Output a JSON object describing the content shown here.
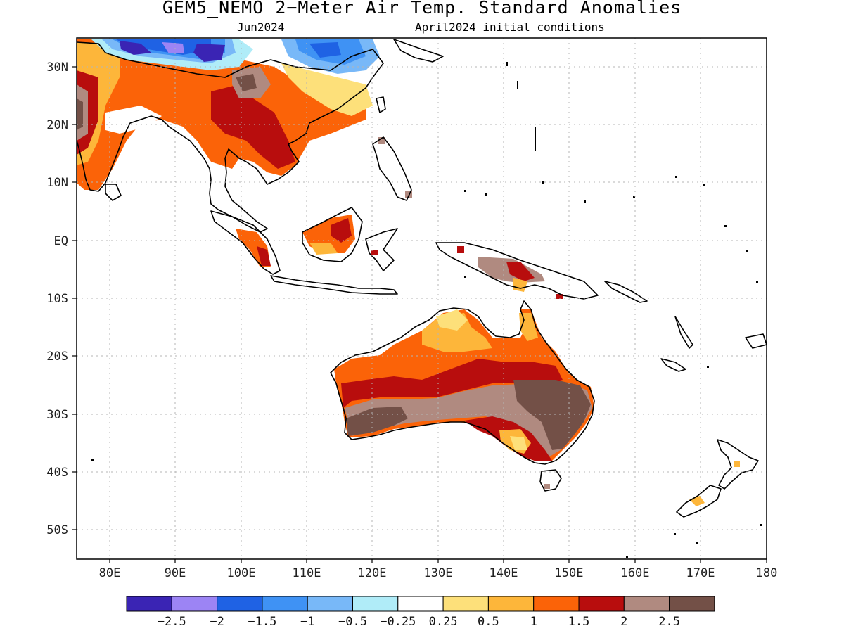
{
  "title": "GEM5_NEMO 2−Meter Air Temp. Standard Anomalies",
  "subtitle_left": "Jun2024",
  "subtitle_right": "April2024 initial conditions",
  "map": {
    "lon_range": [
      75,
      180
    ],
    "lat_range": [
      -55,
      35
    ],
    "lon_ticks": [
      "80E",
      "90E",
      "100E",
      "110E",
      "120E",
      "130E",
      "140E",
      "150E",
      "160E",
      "170E",
      "180"
    ],
    "lat_ticks": [
      "30N",
      "20N",
      "10N",
      "EQ",
      "10S",
      "20S",
      "30S",
      "40S",
      "50S"
    ]
  },
  "colorbar": {
    "colors": [
      "#3a24b4",
      "#9c84f4",
      "#1f62e4",
      "#3f92f4",
      "#78b8f8",
      "#b0ecf8",
      "#ffffff",
      "#fde07a",
      "#fdb63a",
      "#fb6308",
      "#b80d0d",
      "#b08a80",
      "#735047"
    ],
    "labels": [
      "−2.5",
      "−2",
      "−1.5",
      "−1",
      "−0.5",
      "−0.25",
      "0.25",
      "0.5",
      "1",
      "1.5",
      "2",
      "2.5"
    ]
  }
}
